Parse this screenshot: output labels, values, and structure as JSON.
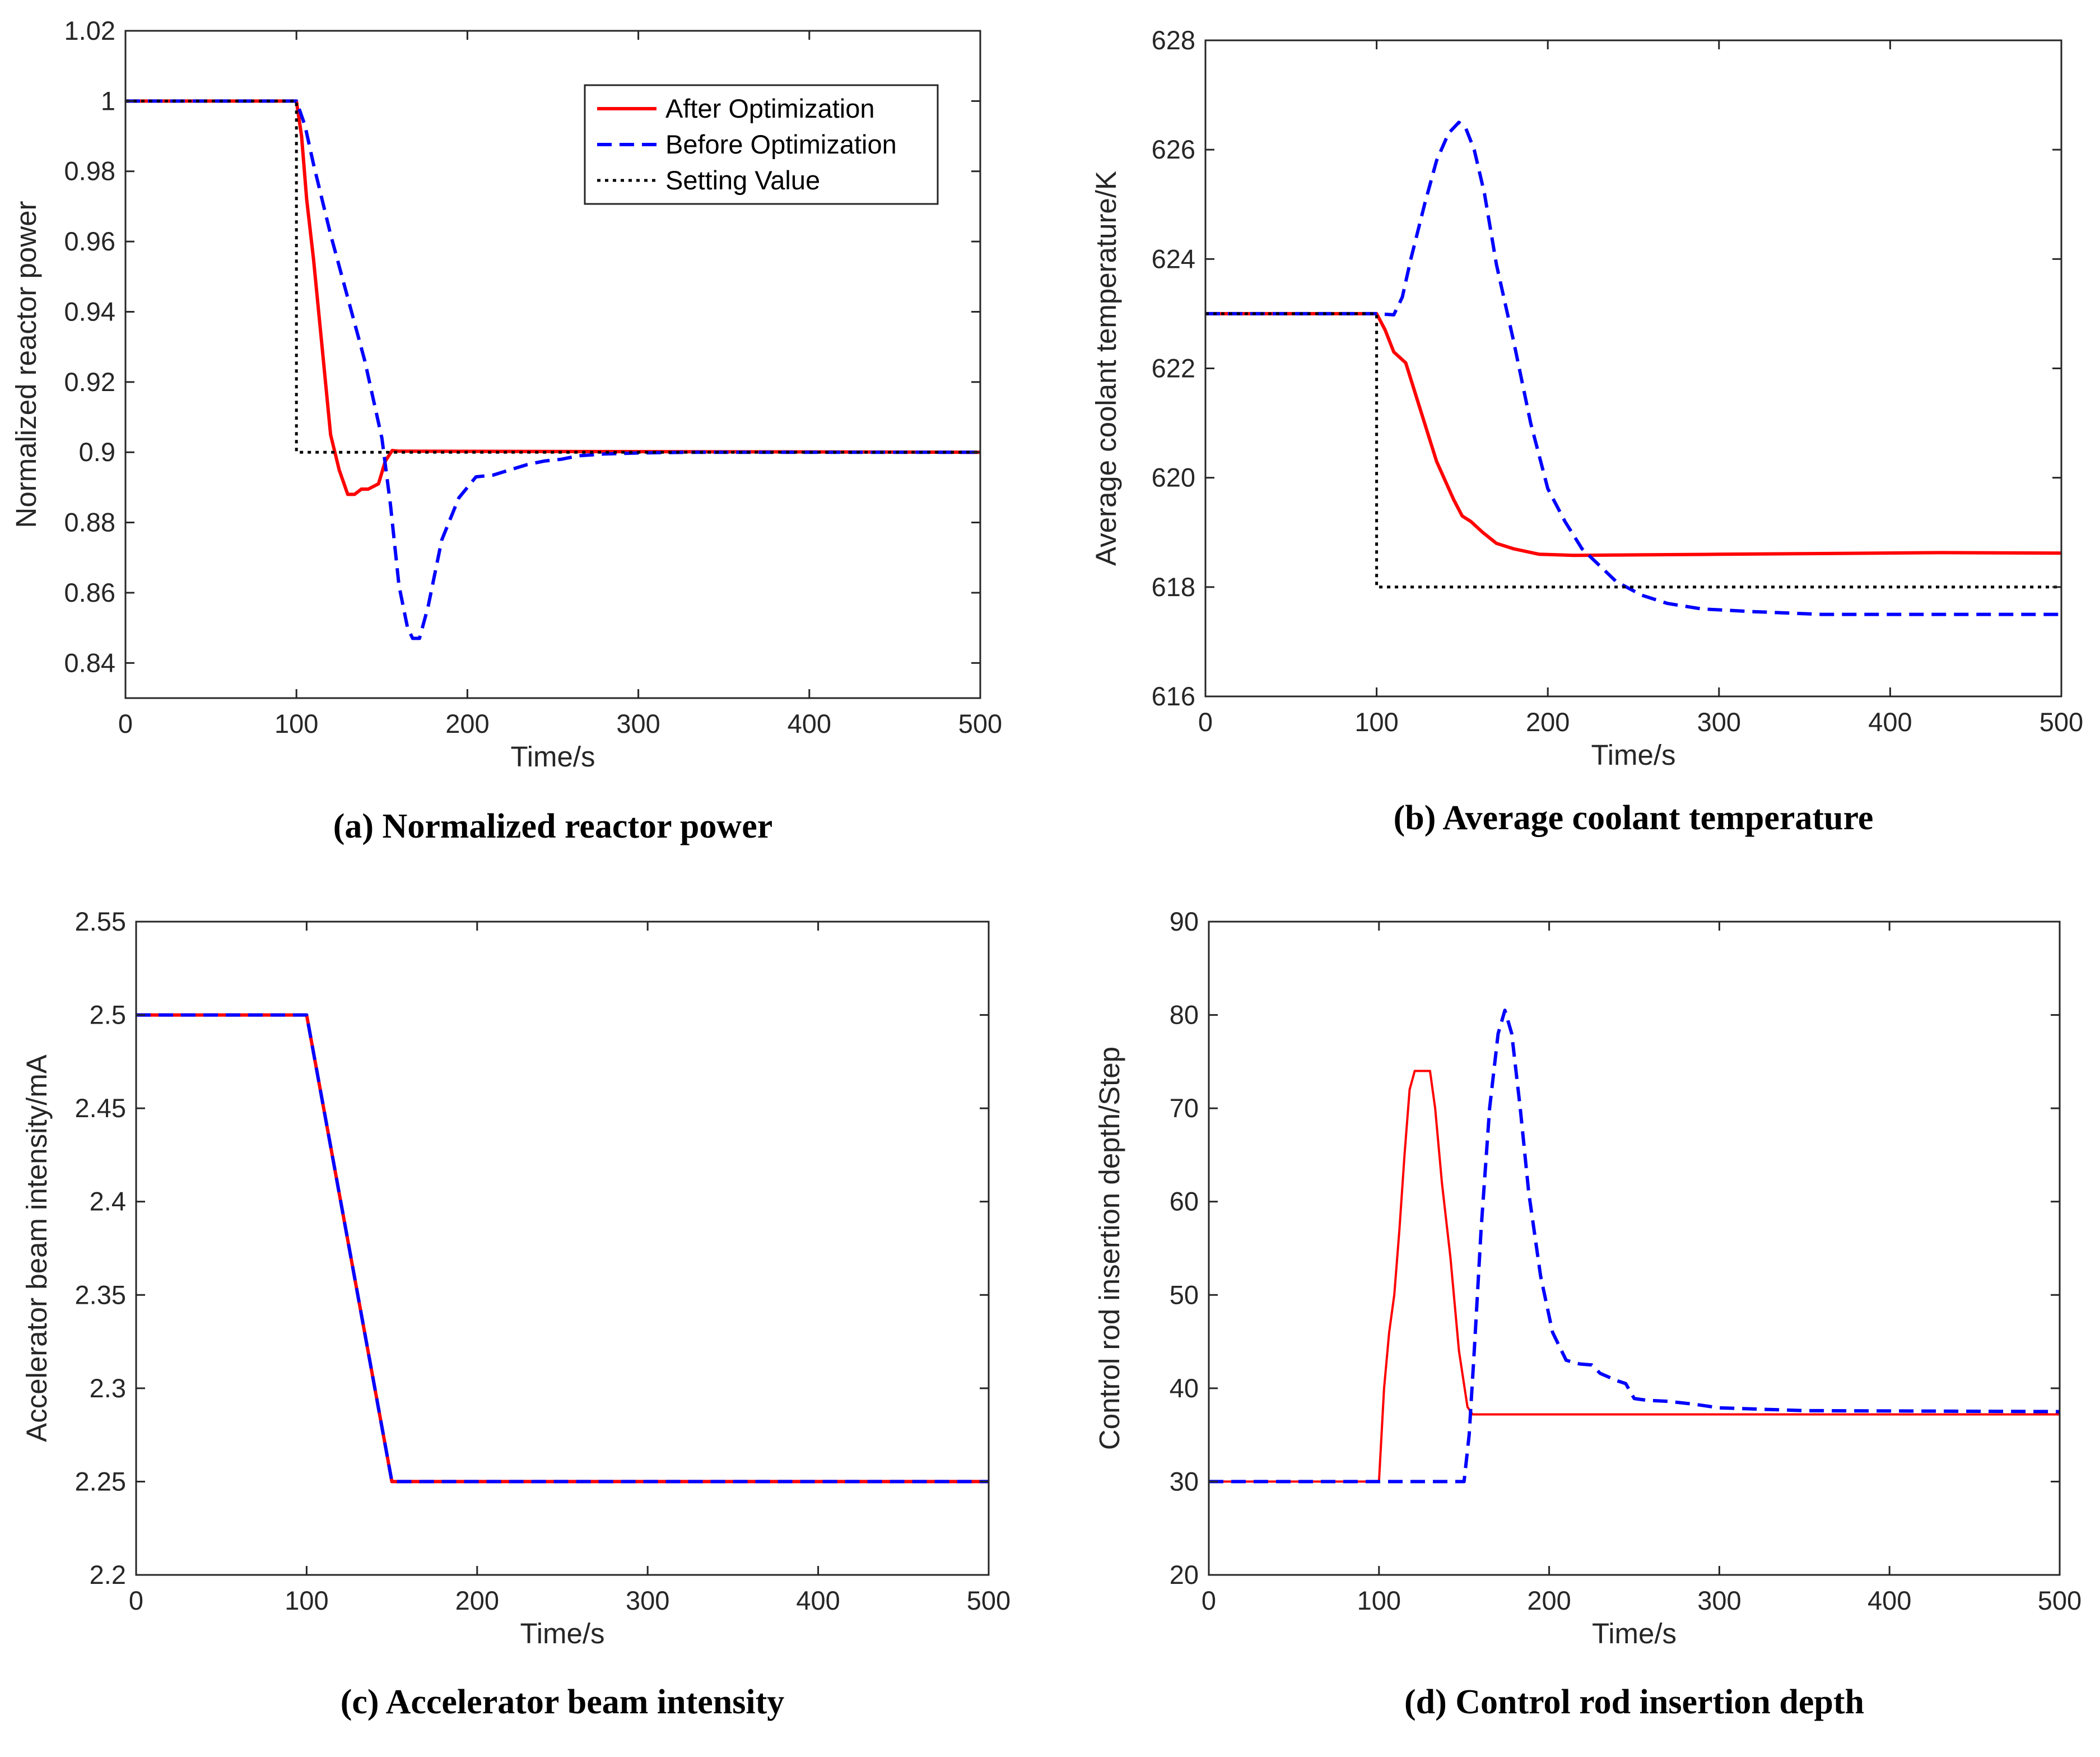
{
  "legend": {
    "after": "After Optimization",
    "before": "Before Optimization",
    "setting": "Setting Value"
  },
  "colors": {
    "after": "#ff0000",
    "before": "#0000ff",
    "setting": "#000000"
  },
  "chart_data": [
    {
      "id": "a",
      "type": "line",
      "caption": "(a) Normalized reactor power",
      "xlabel": "Time/s",
      "ylabel": "Normalized reactor power",
      "xlim": [
        0,
        500
      ],
      "ylim": [
        0.83,
        1.02
      ],
      "xticks": [
        0,
        100,
        200,
        300,
        400,
        500
      ],
      "xtick_labels": [
        "0",
        "100",
        "200",
        "300",
        "400",
        "500"
      ],
      "yticks": [
        0.84,
        0.86,
        0.88,
        0.9,
        0.92,
        0.94,
        0.96,
        0.98,
        1,
        1.02
      ],
      "ytick_labels": [
        "0.84",
        "0.86",
        "0.88",
        "0.9",
        "0.92",
        "0.94",
        "0.96",
        "0.98",
        "1",
        "1.02"
      ],
      "legend_position": "top-right",
      "series": [
        {
          "name": "After Optimization",
          "key": "after",
          "style": "solid",
          "x": [
            0,
            100,
            103,
            106,
            110,
            115,
            120,
            125,
            130,
            134,
            138,
            142,
            148,
            152,
            156,
            160,
            500
          ],
          "y": [
            1.0,
            1.0,
            0.99,
            0.972,
            0.955,
            0.93,
            0.905,
            0.895,
            0.888,
            0.888,
            0.8895,
            0.8895,
            0.891,
            0.8975,
            0.9005,
            0.9003,
            0.9
          ]
        },
        {
          "name": "Before Optimization",
          "key": "before",
          "style": "dashed",
          "x": [
            0,
            100,
            105,
            110,
            120,
            130,
            140,
            150,
            155,
            160,
            165,
            168,
            172,
            177,
            185,
            195,
            205,
            215,
            225,
            235,
            245,
            255,
            265,
            280,
            300,
            330,
            500
          ],
          "y": [
            1.0,
            1.0,
            0.993,
            0.982,
            0.962,
            0.944,
            0.926,
            0.904,
            0.885,
            0.862,
            0.85,
            0.847,
            0.847,
            0.856,
            0.875,
            0.887,
            0.893,
            0.8935,
            0.895,
            0.8965,
            0.8975,
            0.898,
            0.899,
            0.8995,
            0.8998,
            0.9,
            0.9
          ]
        },
        {
          "name": "Setting Value",
          "key": "setting",
          "style": "dotted",
          "x": [
            0,
            100,
            100,
            500
          ],
          "y": [
            1.0,
            1.0,
            0.9,
            0.9
          ]
        }
      ]
    },
    {
      "id": "b",
      "type": "line",
      "caption": "(b) Average coolant temperature",
      "xlabel": "Time/s",
      "ylabel": "Average coolant temperature/K",
      "xlim": [
        0,
        500
      ],
      "ylim": [
        616,
        628
      ],
      "xticks": [
        0,
        100,
        200,
        300,
        400,
        500
      ],
      "xtick_labels": [
        "0",
        "100",
        "200",
        "300",
        "400",
        "500"
      ],
      "yticks": [
        616,
        618,
        620,
        622,
        624,
        626,
        628
      ],
      "ytick_labels": [
        "616",
        "618",
        "620",
        "622",
        "624",
        "626",
        "628"
      ],
      "series": [
        {
          "name": "After Optimization",
          "key": "after",
          "style": "solid",
          "x": [
            0,
            100,
            105,
            110,
            117,
            125,
            135,
            145,
            150,
            155,
            162,
            170,
            180,
            195,
            215,
            300,
            430,
            500
          ],
          "y": [
            623,
            623,
            622.7,
            622.3,
            622.1,
            621.3,
            620.3,
            619.6,
            619.3,
            619.2,
            619.0,
            618.8,
            618.7,
            618.6,
            618.58,
            618.6,
            618.63,
            618.62
          ]
        },
        {
          "name": "Before Optimization",
          "key": "before",
          "style": "dashed",
          "x": [
            0,
            100,
            110,
            115,
            120,
            128,
            135,
            142,
            148,
            152,
            157,
            163,
            170,
            180,
            190,
            200,
            210,
            220,
            230,
            240,
            255,
            270,
            290,
            320,
            360,
            500
          ],
          "y": [
            623,
            623,
            622.98,
            623.3,
            624.0,
            625.0,
            625.8,
            626.3,
            626.5,
            626.4,
            626.0,
            625.2,
            623.9,
            622.5,
            621.0,
            619.8,
            619.2,
            618.7,
            618.4,
            618.1,
            617.85,
            617.7,
            617.6,
            617.55,
            617.5,
            617.5
          ]
        },
        {
          "name": "Setting Value",
          "key": "setting",
          "style": "dotted",
          "x": [
            0,
            100,
            100,
            500
          ],
          "y": [
            623,
            623,
            618,
            618
          ]
        }
      ]
    },
    {
      "id": "c",
      "type": "line",
      "caption": "(c) Accelerator beam intensity",
      "xlabel": "Time/s",
      "ylabel": "Accelerator beam intensity/mA",
      "xlim": [
        0,
        500
      ],
      "ylim": [
        2.2,
        2.55
      ],
      "xticks": [
        0,
        100,
        200,
        300,
        400,
        500
      ],
      "xtick_labels": [
        "0",
        "100",
        "200",
        "300",
        "400",
        "500"
      ],
      "yticks": [
        2.2,
        2.25,
        2.3,
        2.35,
        2.4,
        2.45,
        2.5,
        2.55
      ],
      "ytick_labels": [
        "2.2",
        "2.25",
        "2.3",
        "2.35",
        "2.4",
        "2.45",
        "2.5",
        "2.55"
      ],
      "series": [
        {
          "name": "After Optimization",
          "key": "after",
          "style": "solid",
          "x": [
            0,
            100,
            150,
            500
          ],
          "y": [
            2.5,
            2.5,
            2.25,
            2.25
          ]
        },
        {
          "name": "Before Optimization",
          "key": "before",
          "style": "dashed",
          "x": [
            0,
            100,
            150,
            500
          ],
          "y": [
            2.5,
            2.5,
            2.25,
            2.25
          ]
        }
      ]
    },
    {
      "id": "d",
      "type": "line",
      "caption": "(d) Control rod insertion depth",
      "xlabel": "Time/s",
      "ylabel": "Control rod insertion depth/Step",
      "xlim": [
        0,
        500
      ],
      "ylim": [
        20,
        90
      ],
      "xticks": [
        0,
        100,
        200,
        300,
        400,
        500
      ],
      "xtick_labels": [
        "0",
        "100",
        "200",
        "300",
        "400",
        "500"
      ],
      "yticks": [
        20,
        30,
        40,
        50,
        60,
        70,
        80,
        90
      ],
      "ytick_labels": [
        "20",
        "30",
        "40",
        "50",
        "60",
        "70",
        "80",
        "90"
      ],
      "series": [
        {
          "name": "After Optimization",
          "key": "after",
          "style": "solid",
          "thin": true,
          "x": [
            0,
            100,
            103,
            106,
            109,
            112,
            115,
            118,
            121,
            124,
            127,
            130,
            133,
            137,
            142,
            147,
            152,
            155,
            500
          ],
          "y": [
            30,
            30,
            40,
            46,
            50,
            57,
            65,
            72,
            74,
            74,
            74,
            74,
            70,
            62,
            54,
            44,
            38,
            37.2,
            37.2
          ]
        },
        {
          "name": "Before Optimization",
          "key": "before",
          "style": "dashed",
          "x": [
            0,
            150,
            153,
            156,
            160,
            165,
            170,
            174,
            178,
            183,
            188,
            195,
            202,
            210,
            218,
            225,
            230,
            235,
            240,
            245,
            250,
            258,
            270,
            285,
            300,
            350,
            500
          ],
          "y": [
            30,
            30,
            35,
            44,
            57,
            70,
            78,
            80.5,
            78,
            70,
            61,
            52,
            46,
            43,
            42.6,
            42.5,
            41.6,
            41.2,
            40.8,
            40.5,
            38.9,
            38.7,
            38.6,
            38.3,
            37.9,
            37.6,
            37.5
          ]
        }
      ]
    }
  ]
}
